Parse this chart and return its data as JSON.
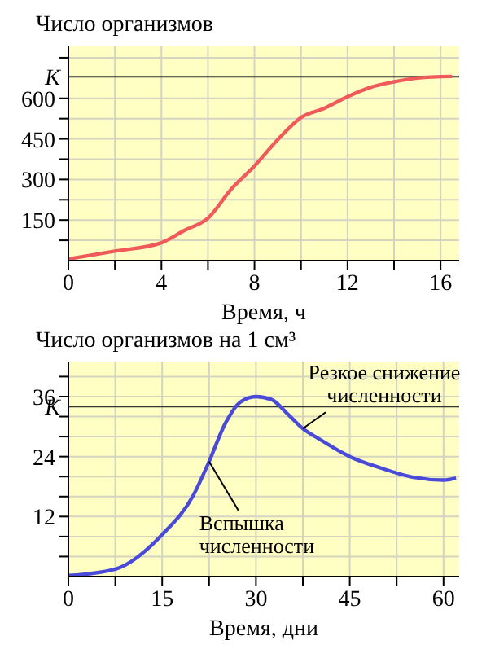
{
  "chart_data": [
    {
      "type": "line",
      "ylabel": "Число организмов",
      "xlabel": "Время, ч",
      "x": [
        0,
        2,
        4,
        5,
        6,
        7,
        8,
        9,
        10,
        11,
        12,
        13,
        14,
        15,
        16.5
      ],
      "series": [
        {
          "color": "#f05a5a",
          "values": [
            6,
            35,
            66,
            112,
            157,
            264,
            350,
            447,
            529,
            563,
            606,
            641,
            661,
            675,
            681
          ]
        }
      ],
      "xlim": [
        0,
        16.8
      ],
      "ylim": [
        0,
        795
      ],
      "xticks": [
        0,
        {
          "value": 2,
          "label": null
        },
        4,
        {
          "value": 6,
          "label": null
        },
        8,
        {
          "value": 10,
          "label": null
        },
        12,
        {
          "value": 14,
          "label": null
        },
        16
      ],
      "yticks": [
        {
          "value": 75,
          "label": null
        },
        150,
        {
          "value": 225,
          "label": null
        },
        300,
        {
          "value": 375,
          "label": null
        },
        450,
        {
          "value": 525,
          "label": null
        },
        600,
        {
          "value": 750,
          "label": null
        }
      ],
      "grid": true,
      "ref_lines": [
        {
          "axis": "y",
          "value": 680,
          "label": "K",
          "color": "#333333"
        }
      ]
    },
    {
      "type": "line",
      "ylabel": "Число организмов на 1 см³",
      "xlabel": "Время, дни",
      "x": [
        0,
        7.5,
        15,
        20,
        22.5,
        25,
        27.5,
        30,
        32.5,
        35,
        37.5,
        40,
        45,
        50,
        55,
        60,
        62
      ],
      "series": [
        {
          "color": "#4a4ad8",
          "values": [
            0.2,
            1.5,
            8.4,
            16.3,
            23,
            30.4,
            34.9,
            36,
            35.4,
            32.6,
            29.6,
            27.6,
            24,
            21.7,
            19.9,
            19.3,
            19.7
          ]
        }
      ],
      "xlim": [
        0,
        62.5
      ],
      "ylim": [
        0,
        43
      ],
      "xticks": [
        0,
        {
          "value": 7.5,
          "label": null
        },
        15,
        {
          "value": 22.5,
          "label": null
        },
        30,
        {
          "value": 37.5,
          "label": null
        },
        45,
        {
          "value": 52.5,
          "label": null
        },
        60
      ],
      "yticks": [
        {
          "value": 4,
          "label": null
        },
        {
          "value": 8,
          "label": null
        },
        12,
        {
          "value": 16,
          "label": null
        },
        {
          "value": 20,
          "label": null
        },
        24,
        {
          "value": 28,
          "label": null
        },
        {
          "value": 32,
          "label": null
        },
        36,
        {
          "value": 40,
          "label": null
        }
      ],
      "grid": true,
      "ref_lines": [
        {
          "axis": "y",
          "value": 34,
          "label": "K",
          "color": "#333333"
        }
      ],
      "annotations": [
        {
          "text": "Резкое снижение\nчисленности",
          "x": 37.5,
          "y": 29.6
        },
        {
          "text": "Вспышка\nчисленности",
          "x": 22.5,
          "y": 23
        }
      ]
    }
  ]
}
